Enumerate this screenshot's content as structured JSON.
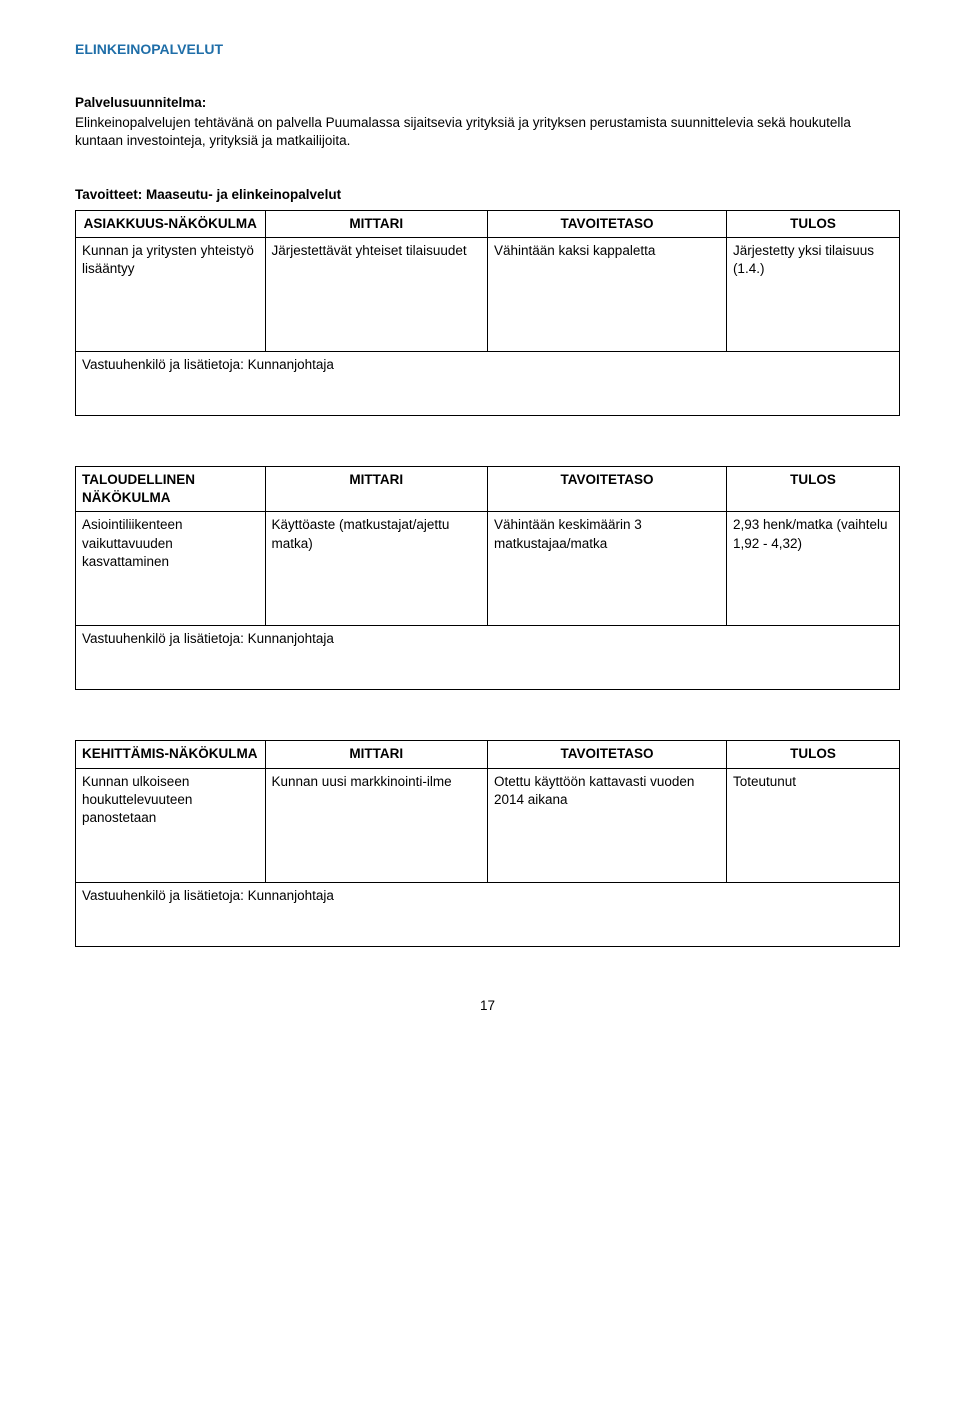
{
  "section_title": "ELINKEINOPALVELUT",
  "plan": {
    "heading": "Palvelusuunnitelma:",
    "text": "Elinkeinopalvelujen tehtävänä on palvella Puumalassa sijaitsevia yrityksiä ja yrityksen perustamista suunnittelevia sekä houkutella kuntaan investointeja, yrityksiä ja matkailijoita."
  },
  "table1": {
    "heading": "Tavoitteet: Maaseutu- ja elinkeinopalvelut",
    "headers": [
      "ASIAKKUUS-NÄKÖKULMA",
      "MITTARI",
      "TAVOITETASO",
      "TULOS"
    ],
    "row": {
      "c1": "Kunnan ja yritysten yhteistyö lisääntyy",
      "c2": "Järjestettävät yhteiset tilaisuudet",
      "c3": "Vähintään kaksi kappaletta",
      "c4": "Järjestetty yksi tilaisuus (1.4.)"
    },
    "footer": "Vastuuhenkilö ja lisätietoja: Kunnanjohtaja"
  },
  "table2": {
    "headers": [
      "TALOUDELLINEN NÄKÖKULMA",
      "MITTARI",
      "TAVOITETASO",
      "TULOS"
    ],
    "row": {
      "c1": "Asiointiliikenteen vaikuttavuuden kasvattaminen",
      "c2": "Käyttöaste (matkustajat/ajettu matka)",
      "c3": "Vähintään keskimäärin 3 matkustajaa/matka",
      "c4": " 2,93 henk/matka (vaihtelu 1,92 - 4,32)"
    },
    "footer": "Vastuuhenkilö ja lisätietoja: Kunnanjohtaja"
  },
  "table3": {
    "headers": [
      "KEHITTÄMIS-NÄKÖKULMA",
      "MITTARI",
      "TAVOITETASO",
      "TULOS"
    ],
    "row": {
      "c1": "Kunnan ulkoiseen houkuttelevuuteen panostetaan",
      "c2": "Kunnan uusi markkinointi-ilme",
      "c3": "Otettu käyttöön kattavasti vuoden 2014 aikana",
      "c4": "Toteutunut"
    },
    "footer": "Vastuuhenkilö ja lisätietoja: Kunnanjohtaja"
  },
  "page_number": "17",
  "colors": {
    "section_title": "#1f6ea8",
    "text": "#000000",
    "border": "#000000",
    "background": "#ffffff"
  }
}
